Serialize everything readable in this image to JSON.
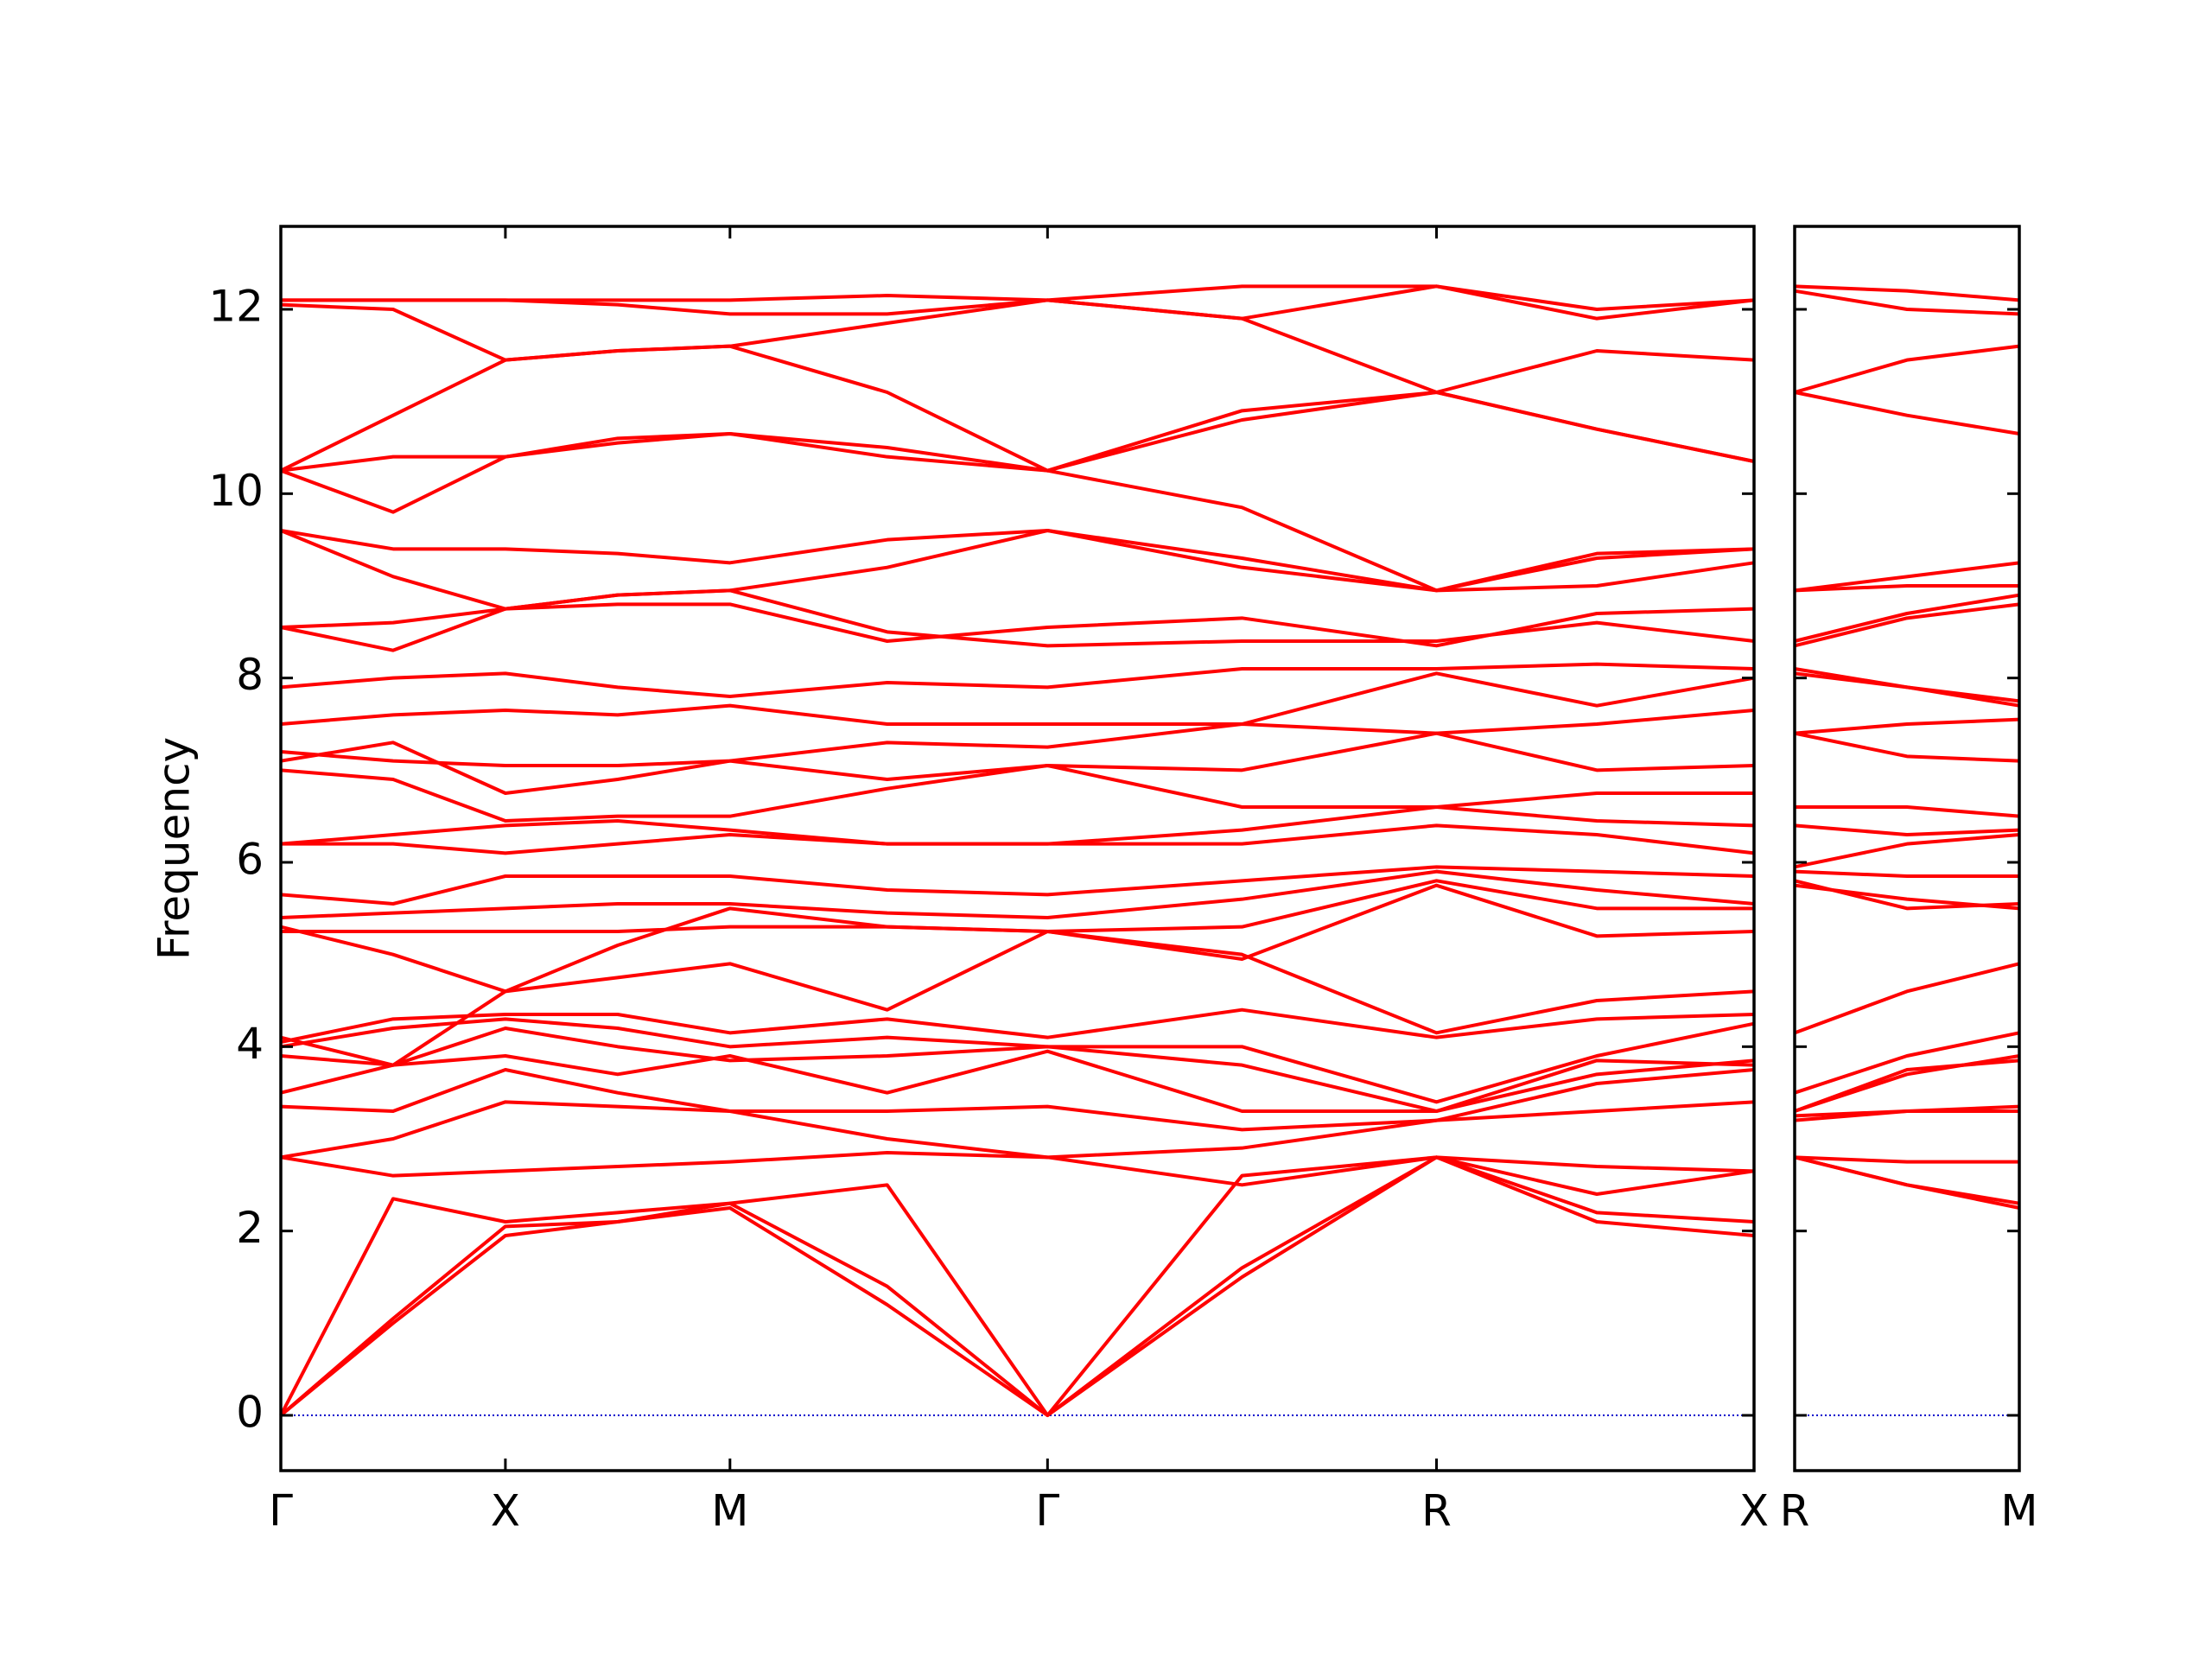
{
  "chart_data": [
    {
      "type": "line",
      "ylabel": "Frequency",
      "color": "#ff0000",
      "zero_line_color": "#0000cc",
      "xlim": [
        0,
        3.28
      ],
      "ylim": [
        -0.6,
        12.9
      ],
      "yticks": [
        0,
        2,
        4,
        6,
        8,
        10,
        12
      ],
      "xticks": [
        {
          "value": 0,
          "label": "Γ"
        },
        {
          "value": 0.5,
          "label": "X"
        },
        {
          "value": 1,
          "label": "M"
        },
        {
          "value": 1.707,
          "label": "Γ"
        },
        {
          "value": 2.573,
          "label": "R"
        },
        {
          "value": 3.28,
          "label": "X"
        }
      ],
      "x": [
        0,
        0.25,
        0.5,
        0.75,
        1,
        1.35,
        1.707,
        2.14,
        2.573,
        2.93,
        3.28
      ],
      "series": [
        {
          "values": [
            0,
            1.0,
            1.95,
            2.1,
            2.25,
            1.2,
            0,
            1.5,
            2.8,
            2.1,
            1.95
          ]
        },
        {
          "values": [
            0,
            1.05,
            2.05,
            2.1,
            2.3,
            1.4,
            0,
            1.6,
            2.8,
            2.2,
            2.1
          ]
        },
        {
          "values": [
            0,
            2.35,
            2.1,
            2.2,
            2.3,
            2.5,
            0,
            2.6,
            2.8,
            2.4,
            2.65
          ]
        },
        {
          "values": [
            2.8,
            2.6,
            2.65,
            2.7,
            2.75,
            2.85,
            2.8,
            2.5,
            2.8,
            2.7,
            2.65
          ]
        },
        {
          "values": [
            2.8,
            3.0,
            3.4,
            3.35,
            3.3,
            3.0,
            2.8,
            2.9,
            3.2,
            3.3,
            3.4
          ]
        },
        {
          "values": [
            3.35,
            3.3,
            3.75,
            3.5,
            3.3,
            3.3,
            3.35,
            3.1,
            3.2,
            3.6,
            3.75
          ]
        },
        {
          "values": [
            3.5,
            3.8,
            3.9,
            3.7,
            3.9,
            3.5,
            3.95,
            3.3,
            3.3,
            3.85,
            3.8
          ]
        },
        {
          "values": [
            3.9,
            3.8,
            4.2,
            4.0,
            3.85,
            3.9,
            4.0,
            3.8,
            3.3,
            3.7,
            3.85
          ]
        },
        {
          "values": [
            4.0,
            4.2,
            4.3,
            4.2,
            4.0,
            4.1,
            4.0,
            4.0,
            3.4,
            3.9,
            4.25
          ]
        },
        {
          "values": [
            4.05,
            4.3,
            4.35,
            4.35,
            4.15,
            4.3,
            4.1,
            4.4,
            4.1,
            4.3,
            4.35
          ]
        },
        {
          "values": [
            4.1,
            3.8,
            4.6,
            4.75,
            4.9,
            4.4,
            5.25,
            5.0,
            4.15,
            4.5,
            4.6
          ]
        },
        {
          "values": [
            5.25,
            5.25,
            5.25,
            5.25,
            5.3,
            5.3,
            5.25,
            4.95,
            5.75,
            5.2,
            5.25
          ]
        },
        {
          "values": [
            5.3,
            5.0,
            4.6,
            5.1,
            5.5,
            5.3,
            5.25,
            5.3,
            5.8,
            5.5,
            5.5
          ]
        },
        {
          "values": [
            5.4,
            5.45,
            5.5,
            5.55,
            5.55,
            5.45,
            5.4,
            5.6,
            5.9,
            5.7,
            5.55
          ]
        },
        {
          "values": [
            5.65,
            5.55,
            5.85,
            5.85,
            5.85,
            5.7,
            5.65,
            5.8,
            5.95,
            5.9,
            5.85
          ]
        },
        {
          "values": [
            6.2,
            6.2,
            6.1,
            6.2,
            6.3,
            6.2,
            6.2,
            6.2,
            6.4,
            6.3,
            6.1
          ]
        },
        {
          "values": [
            6.2,
            6.3,
            6.4,
            6.45,
            6.35,
            6.2,
            6.2,
            6.35,
            6.6,
            6.45,
            6.4
          ]
        },
        {
          "values": [
            7.0,
            6.9,
            6.45,
            6.5,
            6.5,
            6.8,
            7.05,
            6.6,
            6.6,
            6.75,
            6.75
          ]
        },
        {
          "values": [
            7.1,
            7.3,
            6.75,
            6.9,
            7.1,
            6.9,
            7.05,
            7.0,
            7.4,
            7.0,
            7.05
          ]
        },
        {
          "values": [
            7.2,
            7.1,
            7.05,
            7.05,
            7.1,
            7.3,
            7.25,
            7.5,
            7.4,
            7.5,
            7.65
          ]
        },
        {
          "values": [
            7.5,
            7.6,
            7.65,
            7.6,
            7.7,
            7.5,
            7.5,
            7.5,
            8.05,
            7.7,
            8.0
          ]
        },
        {
          "values": [
            7.9,
            8.0,
            8.05,
            7.9,
            7.8,
            7.95,
            7.9,
            8.1,
            8.1,
            8.15,
            8.1
          ]
        },
        {
          "values": [
            8.55,
            8.6,
            8.75,
            8.8,
            8.8,
            8.4,
            8.55,
            8.65,
            8.35,
            8.7,
            8.75
          ]
        },
        {
          "values": [
            8.55,
            8.3,
            8.75,
            8.9,
            8.95,
            8.5,
            8.35,
            8.4,
            8.4,
            8.6,
            8.4
          ]
        },
        {
          "values": [
            9.6,
            9.1,
            8.75,
            8.9,
            8.95,
            9.2,
            9.6,
            9.2,
            8.95,
            9.0,
            9.25
          ]
        },
        {
          "values": [
            9.6,
            9.4,
            9.4,
            9.35,
            9.25,
            9.5,
            9.6,
            9.3,
            8.95,
            9.35,
            9.4
          ]
        },
        {
          "values": [
            10.25,
            10.4,
            10.4,
            10.55,
            10.65,
            10.5,
            10.25,
            10.8,
            11.1,
            11.55,
            11.45
          ]
        },
        {
          "values": [
            10.25,
            9.8,
            10.4,
            10.6,
            10.65,
            10.4,
            10.25,
            9.85,
            8.95,
            9.3,
            9.4
          ]
        },
        {
          "values": [
            10.25,
            10.85,
            11.45,
            11.55,
            11.6,
            11.1,
            10.25,
            10.9,
            11.1,
            10.7,
            10.35
          ]
        },
        {
          "values": [
            12.05,
            12.0,
            11.45,
            11.55,
            11.6,
            11.85,
            12.1,
            11.9,
            12.25,
            12.0,
            12.1
          ]
        },
        {
          "values": [
            12.1,
            12.1,
            12.1,
            12.05,
            11.95,
            11.95,
            12.1,
            12.25,
            12.25,
            11.9,
            12.1
          ]
        },
        {
          "values": [
            12.1,
            12.1,
            12.1,
            12.1,
            12.1,
            12.15,
            12.1,
            11.9,
            11.1,
            10.7,
            10.35
          ]
        }
      ]
    },
    {
      "type": "line",
      "color": "#ff0000",
      "zero_line_color": "#0000cc",
      "xlim": [
        0,
        0.5
      ],
      "ylim": [
        -0.6,
        12.9
      ],
      "yticks": [
        0,
        2,
        4,
        6,
        8,
        10,
        12
      ],
      "show_ytick_labels": false,
      "xticks": [
        {
          "value": 0,
          "label": "R"
        },
        {
          "value": 0.5,
          "label": "M"
        }
      ],
      "x": [
        0,
        0.25,
        0.5
      ],
      "series": [
        {
          "values": [
            2.8,
            2.5,
            2.25
          ]
        },
        {
          "values": [
            2.8,
            2.5,
            2.3
          ]
        },
        {
          "values": [
            2.8,
            2.75,
            2.75
          ]
        },
        {
          "values": [
            3.2,
            3.3,
            3.3
          ]
        },
        {
          "values": [
            3.25,
            3.3,
            3.35
          ]
        },
        {
          "values": [
            3.3,
            3.75,
            3.85
          ]
        },
        {
          "values": [
            3.3,
            3.7,
            3.9
          ]
        },
        {
          "values": [
            3.5,
            3.9,
            4.15
          ]
        },
        {
          "values": [
            4.15,
            4.6,
            4.9
          ]
        },
        {
          "values": [
            5.75,
            5.6,
            5.5
          ]
        },
        {
          "values": [
            5.8,
            5.5,
            5.55
          ]
        },
        {
          "values": [
            5.9,
            5.85,
            5.85
          ]
        },
        {
          "values": [
            5.95,
            6.2,
            6.3
          ]
        },
        {
          "values": [
            6.4,
            6.3,
            6.35
          ]
        },
        {
          "values": [
            6.6,
            6.6,
            6.5
          ]
        },
        {
          "values": [
            7.4,
            7.15,
            7.1
          ]
        },
        {
          "values": [
            7.4,
            7.5,
            7.55
          ]
        },
        {
          "values": [
            8.05,
            7.9,
            7.75
          ]
        },
        {
          "values": [
            8.1,
            7.9,
            7.7
          ]
        },
        {
          "values": [
            8.35,
            8.65,
            8.8
          ]
        },
        {
          "values": [
            8.4,
            8.7,
            8.9
          ]
        },
        {
          "values": [
            8.95,
            9.0,
            9.0
          ]
        },
        {
          "values": [
            8.95,
            9.1,
            9.25
          ]
        },
        {
          "values": [
            11.1,
            10.85,
            10.65
          ]
        },
        {
          "values": [
            11.1,
            11.45,
            11.6
          ]
        },
        {
          "values": [
            12.2,
            12.0,
            11.95
          ]
        },
        {
          "values": [
            12.25,
            12.2,
            12.1
          ]
        }
      ]
    }
  ]
}
